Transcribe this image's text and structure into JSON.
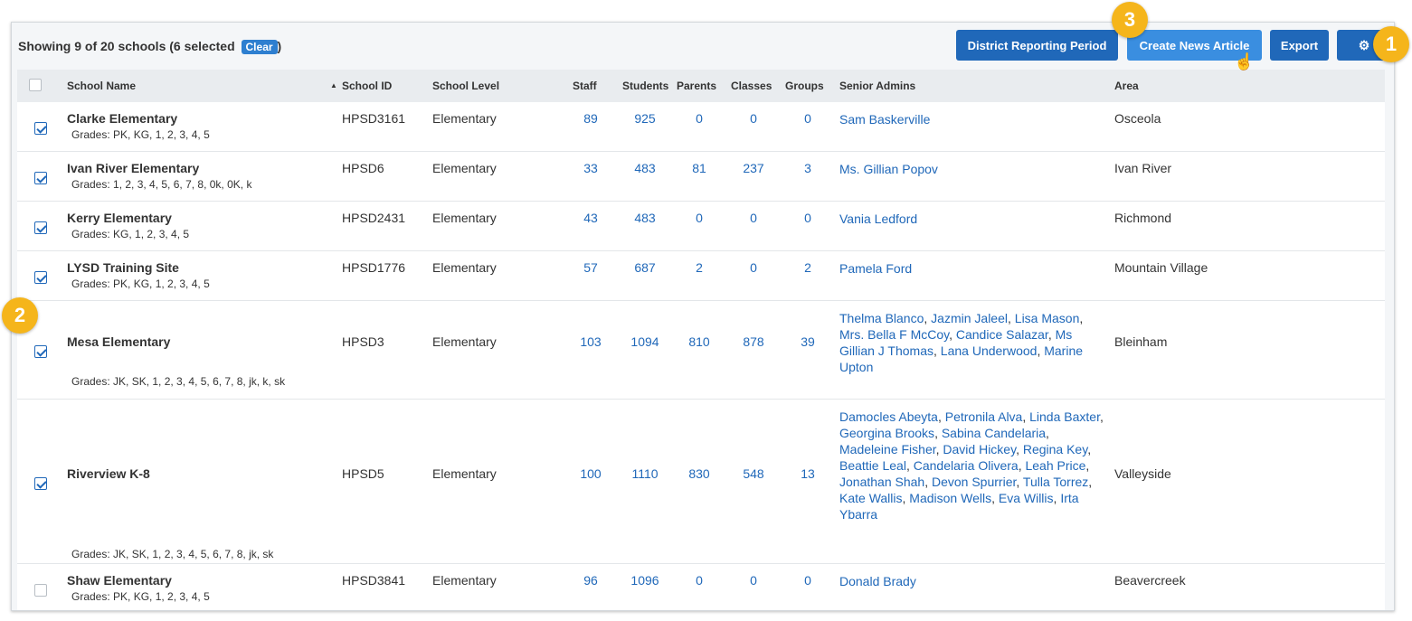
{
  "toolbar": {
    "summary_text": "Showing 9 of 20 schools (6 selected",
    "clear_label": "Clear",
    "summary_close": ")",
    "district_button": "District Reporting Period",
    "news_button": "Create News Article",
    "export_button": "Export",
    "settings_icon": "gear-icon"
  },
  "columns": {
    "school_name": "School Name",
    "school_id": "School ID",
    "school_level": "School Level",
    "staff": "Staff",
    "students": "Students",
    "parents": "Parents",
    "classes": "Classes",
    "groups": "Groups",
    "senior_admins": "Senior Admins",
    "area": "Area",
    "sort_indicator": "▲"
  },
  "rows": [
    {
      "checked": true,
      "name": "Clarke Elementary",
      "grades": "Grades: PK, KG, 1, 2, 3, 4, 5",
      "id": "HPSD3161",
      "level": "Elementary",
      "staff": "89",
      "students": "925",
      "parents": "0",
      "classes": "0",
      "groups": "0",
      "admins": [
        "Sam Baskerville"
      ],
      "area": "Osceola"
    },
    {
      "checked": true,
      "name": "Ivan River Elementary",
      "grades": "Grades: 1, 2, 3, 4, 5, 6, 7, 8, 0k, 0K, k",
      "id": "HPSD6",
      "level": "Elementary",
      "staff": "33",
      "students": "483",
      "parents": "81",
      "classes": "237",
      "groups": "3",
      "admins": [
        "Ms. Gillian Popov"
      ],
      "area": "Ivan River"
    },
    {
      "checked": true,
      "name": "Kerry Elementary",
      "grades": "Grades: KG, 1, 2, 3, 4, 5",
      "id": "HPSD2431",
      "level": "Elementary",
      "staff": "43",
      "students": "483",
      "parents": "0",
      "classes": "0",
      "groups": "0",
      "admins": [
        "Vania Ledford"
      ],
      "area": "Richmond"
    },
    {
      "checked": true,
      "name": "LYSD Training Site",
      "grades": "Grades: PK, KG, 1, 2, 3, 4, 5",
      "id": "HPSD1776",
      "level": "Elementary",
      "staff": "57",
      "students": "687",
      "parents": "2",
      "classes": "0",
      "groups": "2",
      "admins": [
        "Pamela Ford"
      ],
      "area": "Mountain Village"
    },
    {
      "checked": true,
      "name": "Mesa Elementary",
      "grades": "Grades: JK, SK, 1, 2, 3, 4, 5, 6, 7, 8, jk, k, sk",
      "id": "HPSD3",
      "level": "Elementary",
      "staff": "103",
      "students": "1094",
      "parents": "810",
      "classes": "878",
      "groups": "39",
      "admins": [
        "Thelma Blanco",
        "Jazmin Jaleel",
        "Lisa Mason",
        "Mrs. Bella F McCoy",
        "Candice Salazar",
        "Ms Gillian J Thomas",
        "Lana Underwood",
        "Marine Upton"
      ],
      "area": "Bleinham"
    },
    {
      "checked": true,
      "name": "Riverview K-8",
      "grades": "Grades: JK, SK, 1, 2, 3, 4, 5, 6, 7, 8, jk, sk",
      "id": "HPSD5",
      "level": "Elementary",
      "staff": "100",
      "students": "1110",
      "parents": "830",
      "classes": "548",
      "groups": "13",
      "admins": [
        "Damocles Abeyta",
        "Petronila Alva",
        "Linda Baxter",
        "Georgina Brooks",
        "Sabina Candelaria",
        "Madeleine Fisher",
        "David Hickey",
        "Regina Key",
        "Beattie Leal",
        "Candelaria Olivera",
        "Leah Price",
        "Jonathan Shah",
        "Devon Spurrier",
        "Tulla Torrez",
        "Kate Wallis",
        "Madison Wells",
        "Eva Willis",
        "Irta Ybarra"
      ],
      "area": "Valleyside"
    },
    {
      "checked": false,
      "name": "Shaw Elementary",
      "grades": "Grades: PK, KG, 1, 2, 3, 4, 5",
      "id": "HPSD3841",
      "level": "Elementary",
      "staff": "96",
      "students": "1096",
      "parents": "0",
      "classes": "0",
      "groups": "0",
      "admins": [
        "Donald Brady"
      ],
      "area": "Beavercreek"
    }
  ],
  "callouts": {
    "one": "1",
    "two": "2",
    "three": "3"
  },
  "colors": {
    "primary": "#2068b9",
    "callout": "#f5b51b",
    "header_bg": "#e9ecef"
  }
}
